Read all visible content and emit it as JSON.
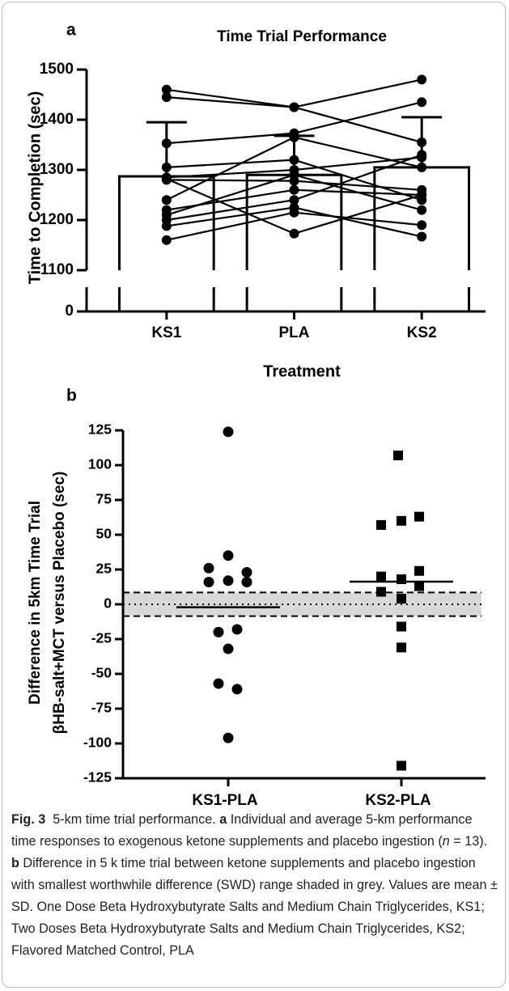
{
  "chart_data": [
    {
      "type": "bar",
      "panel": "a",
      "title": "Time Trial Performance",
      "y_label": "Time to Completion (sec)",
      "x_label": "Treatment",
      "categories": [
        "KS1",
        "PLA",
        "KS2"
      ],
      "values": [
        1287,
        1290,
        1305
      ],
      "errors": [
        108,
        78,
        100
      ],
      "individuals": [
        [
          1460,
          1425,
          1355
        ],
        [
          1445,
          1425,
          1480
        ],
        [
          1353,
          1373,
          1435
        ],
        [
          1305,
          1320,
          1240
        ],
        [
          1285,
          1300,
          1325
        ],
        [
          1280,
          1278,
          1260
        ],
        [
          1240,
          1365,
          1305
        ],
        [
          1220,
          1260,
          1250
        ],
        [
          1210,
          1290,
          1220
        ],
        [
          1200,
          1240,
          1330
        ],
        [
          1188,
          1225,
          1167
        ],
        [
          1160,
          1215,
          1190
        ],
        [
          1282,
          1173,
          1250
        ]
      ],
      "ylim": [
        0,
        1500
      ],
      "yticks": [
        0,
        1100,
        1200,
        1300,
        1400,
        1500
      ],
      "axis_break": [
        0,
        1100
      ],
      "color": "#000000"
    },
    {
      "type": "scatter",
      "panel": "b",
      "y_label": [
        "Difference in 5km Time Trial",
        "βHB-salt+MCT versus Placebo (sec)"
      ],
      "categories": [
        "KS1-PLA",
        "KS2-PLA"
      ],
      "series": [
        {
          "marker": "circle",
          "color": "#000000",
          "values": [
            124,
            35,
            26,
            23,
            17,
            16,
            16,
            -18,
            -20,
            -32,
            -57,
            -61,
            -96
          ]
        },
        {
          "marker": "square",
          "color": "#000000",
          "values": [
            107,
            63,
            60,
            57,
            24,
            20,
            18,
            13,
            9,
            4,
            -16,
            -31,
            -116
          ]
        }
      ],
      "means": [
        -2.1,
        16.3
      ],
      "band": [
        -8.5,
        8.5
      ],
      "band_color": "#d9d9d9",
      "ylim": [
        -125,
        125
      ],
      "yticks": [
        -125,
        -100,
        -75,
        -50,
        -25,
        0,
        25,
        50,
        75,
        100,
        125
      ]
    }
  ],
  "caption": {
    "label": "Fig. 3",
    "title": "5-km time trial performance.",
    "a_label": "a",
    "a_text": "Individual and average 5-km performance time responses to exogenous ketone supplements and placebo ingestion (",
    "n": "n",
    "a_end": "= 13).",
    "b_label": "b",
    "b_text": "Difference in 5 k time trial between ketone supplements and placebo ingestion with smallest worthwhile difference (SWD) range shaded in grey. Values are mean ± SD. One Dose Beta Hydroxybutyrate Salts and Medium Chain Triglycerides, KS1; Two Doses Beta Hydroxybutyrate Salts and Medium Chain Triglycerides, KS2; Flavored Matched Control, PLA"
  }
}
